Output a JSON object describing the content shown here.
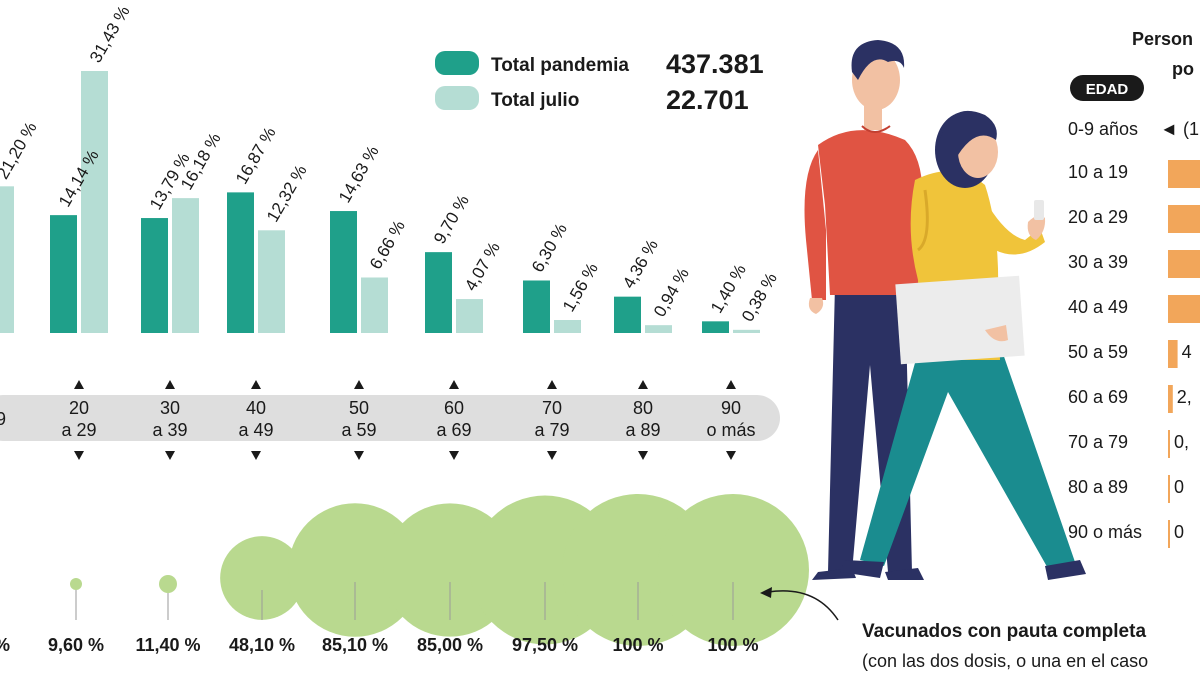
{
  "legend": {
    "total_pandemia_label": "Total pandemia",
    "total_pandemia_value": "437.381",
    "total_julio_label": "Total julio",
    "total_julio_value": "22.701"
  },
  "colors": {
    "pandemia": "#1fa08a",
    "julio": "#b5ddd4",
    "band": "#dedede",
    "vaccinated": "#b9d98f",
    "side_bar": "#f2a65a",
    "badge": "#1a1a1a"
  },
  "chart_data": {
    "type": "bar",
    "categories": [
      "20 a 29",
      "30 a 39",
      "40 a 49",
      "50 a 59",
      "60 a 69",
      "70 a 79",
      "80 a 89",
      "90 o más"
    ],
    "series": [
      {
        "name": "Total pandemia",
        "values": [
          14.14,
          13.79,
          16.87,
          14.63,
          9.7,
          6.3,
          4.36,
          1.4
        ],
        "labels": [
          "14,14 %",
          "13,79 %",
          "16,87 %",
          "14,63 %",
          "9,70 %",
          "6,30 %",
          "4,36 %",
          "1,40 %"
        ]
      },
      {
        "name": "Total julio",
        "values": [
          31.43,
          16.18,
          12.32,
          6.66,
          4.07,
          1.56,
          0.94,
          0.38
        ],
        "labels": [
          "31,43 %",
          "16,18 %",
          "12,32 %",
          "6,66 %",
          "4,07 %",
          "1,56 %",
          "0,94 %",
          "0,38 %"
        ]
      }
    ],
    "partial_left_label": "21,20 %",
    "partial_left_value": 21.2,
    "partial_left_age": "9",
    "age_groups": [
      {
        "top": "20",
        "bottom": "a 29"
      },
      {
        "top": "30",
        "bottom": "a 39"
      },
      {
        "top": "40",
        "bottom": "a 49"
      },
      {
        "top": "50",
        "bottom": "a 59"
      },
      {
        "top": "60",
        "bottom": "a 69"
      },
      {
        "top": "70",
        "bottom": "a 79"
      },
      {
        "top": "80",
        "bottom": "a 89"
      },
      {
        "top": "90",
        "bottom": "o más"
      }
    ],
    "vaccination": {
      "values": [
        9.6,
        11.4,
        48.1,
        85.1,
        85.0,
        97.5,
        100,
        100
      ],
      "labels": [
        "9,60 %",
        "11,40 %",
        "48,10 %",
        "85,10 %",
        "85,00 %",
        "97,50 %",
        "100 %",
        "100 %"
      ],
      "partial_left_label": "%"
    },
    "ylim": [
      0,
      32
    ]
  },
  "side_panel": {
    "title_line1": "Person",
    "title_line2": "po",
    "badge": "EDAD",
    "first_row_age": "0-9 años",
    "first_row_marker": "◄",
    "first_row_value": "(1",
    "rows": [
      {
        "age": "10 a 19",
        "value": ""
      },
      {
        "age": "20 a 29",
        "value": ""
      },
      {
        "age": "30 a 39",
        "value": ""
      },
      {
        "age": "40 a 49",
        "value": ""
      },
      {
        "age": "50 a 59",
        "value": "4"
      },
      {
        "age": "60 a 69",
        "value": "2,"
      },
      {
        "age": "70 a 79",
        "value": "0,"
      },
      {
        "age": "80 a 89",
        "value": "0"
      },
      {
        "age": "90 o más",
        "value": "0"
      }
    ],
    "bar_levels": [
      1,
      1,
      1,
      1,
      0.3,
      0.15,
      0.05,
      0.03,
      0.02
    ]
  },
  "note": {
    "title": "Vacunados con pauta completa",
    "subtitle": "(con las dos dosis, o una en el caso"
  }
}
